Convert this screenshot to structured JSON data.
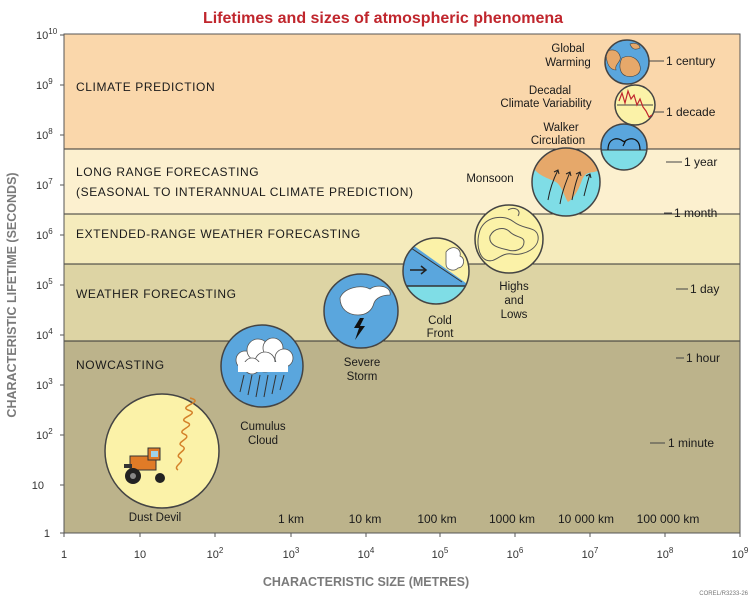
{
  "title": "Lifetimes and sizes of atmospheric phenomena",
  "x_axis": {
    "label": "CHARACTERISTIC SIZE (METRES)",
    "ticks": [
      {
        "base": "1",
        "exp": ""
      },
      {
        "base": "10",
        "exp": ""
      },
      {
        "base": "10",
        "exp": "2"
      },
      {
        "base": "10",
        "exp": "3"
      },
      {
        "base": "10",
        "exp": "4"
      },
      {
        "base": "10",
        "exp": "5"
      },
      {
        "base": "10",
        "exp": "6"
      },
      {
        "base": "10",
        "exp": "7"
      },
      {
        "base": "10",
        "exp": "8"
      },
      {
        "base": "10",
        "exp": "9"
      }
    ],
    "size_labels": [
      "1 km",
      "10 km",
      "100 km",
      "1000 km",
      "10 000 km",
      "100 000 km"
    ]
  },
  "y_axis": {
    "label": "CHARACTERISTIC LIFETIME (SECONDS)",
    "ticks": [
      {
        "base": "1",
        "exp": ""
      },
      {
        "base": "10",
        "exp": ""
      },
      {
        "base": "10",
        "exp": "2"
      },
      {
        "base": "10",
        "exp": "3"
      },
      {
        "base": "10",
        "exp": "4"
      },
      {
        "base": "10",
        "exp": "5"
      },
      {
        "base": "10",
        "exp": "6"
      },
      {
        "base": "10",
        "exp": "7"
      },
      {
        "base": "10",
        "exp": "8"
      },
      {
        "base": "10",
        "exp": "9"
      },
      {
        "base": "10",
        "exp": "10"
      }
    ],
    "time_labels": [
      "1 minute",
      "1 hour",
      "1 day",
      "1 month",
      "1 year",
      "1 decade",
      "1 century"
    ]
  },
  "bands": [
    {
      "lines": [
        "NOWCASTING"
      ],
      "color": "#bcb38b"
    },
    {
      "lines": [
        "WEATHER FORECASTING"
      ],
      "color": "#ddd4a4"
    },
    {
      "lines": [
        "EXTENDED-RANGE WEATHER FORECASTING"
      ],
      "color": "#f5ebbc"
    },
    {
      "lines": [
        "LONG RANGE FORECASTING",
        "(SEASONAL TO INTERANNUAL CLIMATE PREDICTION)"
      ],
      "color": "#fcf0cf"
    },
    {
      "lines": [
        "CLIMATE PREDICTION"
      ],
      "color": "#fad7ab"
    }
  ],
  "phenomena": [
    {
      "id": "dust-devil",
      "lines": [
        "Dust Devil"
      ]
    },
    {
      "id": "cumulus-cloud",
      "lines": [
        "Cumulus",
        "Cloud"
      ]
    },
    {
      "id": "severe-storm",
      "lines": [
        "Severe",
        "Storm"
      ]
    },
    {
      "id": "cold-front",
      "lines": [
        "Cold",
        "Front"
      ]
    },
    {
      "id": "highs-and-lows",
      "lines": [
        "Highs",
        "and",
        "Lows"
      ]
    },
    {
      "id": "monsoon",
      "lines": [
        "Monsoon"
      ]
    },
    {
      "id": "walker-circulation",
      "lines": [
        "Walker",
        "Circulation"
      ]
    },
    {
      "id": "decadal-climate-variability",
      "lines": [
        "Decadal",
        "Climate Variability"
      ]
    },
    {
      "id": "global-warming",
      "lines": [
        "Global",
        "Warming"
      ]
    }
  ],
  "corner_text": "COREL/R3233-26",
  "colors": {
    "title": "#c0262d",
    "circle_fill": "#fbf2a8",
    "circle_blue": "#5aa6dd",
    "water": "#7fdde6",
    "land": "#e6a86a",
    "border_line": "#333333"
  }
}
